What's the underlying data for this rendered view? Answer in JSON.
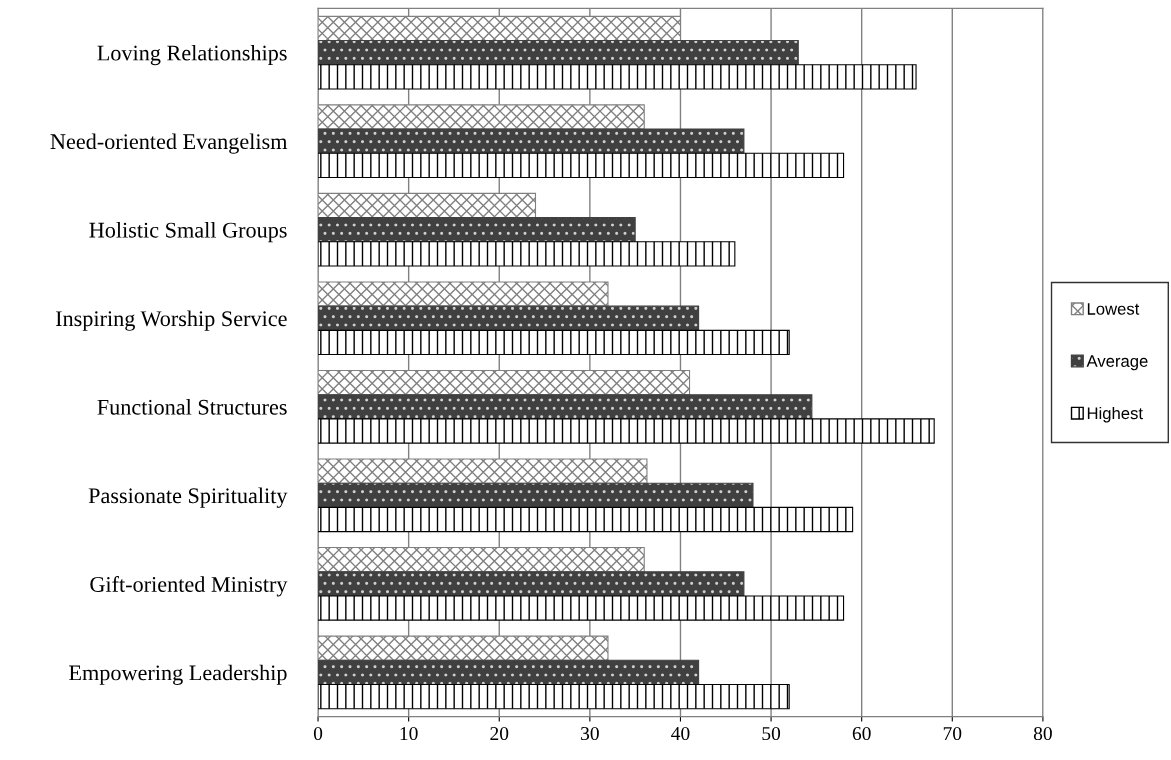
{
  "chart_data": {
    "type": "bar",
    "orientation": "horizontal",
    "categories": [
      "Loving Relationships",
      "Need-oriented Evangelism",
      "Holistic Small Groups",
      "Inspiring Worship Service",
      "Functional Structures",
      "Passionate Spirituality",
      "Gift-oriented Ministry",
      "Empowering Leadership"
    ],
    "series": [
      {
        "name": "Lowest",
        "color": "#808080",
        "values": [
          40,
          36,
          24,
          32,
          41,
          36.3,
          36,
          32
        ]
      },
      {
        "name": "Average",
        "color": "#404040",
        "values": [
          53,
          47,
          35,
          42,
          54.5,
          48,
          47,
          42
        ]
      },
      {
        "name": "Highest",
        "color": "#000000",
        "values": [
          66,
          58,
          46,
          52,
          68,
          59,
          58,
          52
        ]
      }
    ],
    "xlim": [
      0,
      80
    ],
    "xticks": [
      0,
      10,
      20,
      30,
      40,
      50,
      60,
      70,
      80
    ],
    "grid": "x",
    "legend": "right"
  }
}
